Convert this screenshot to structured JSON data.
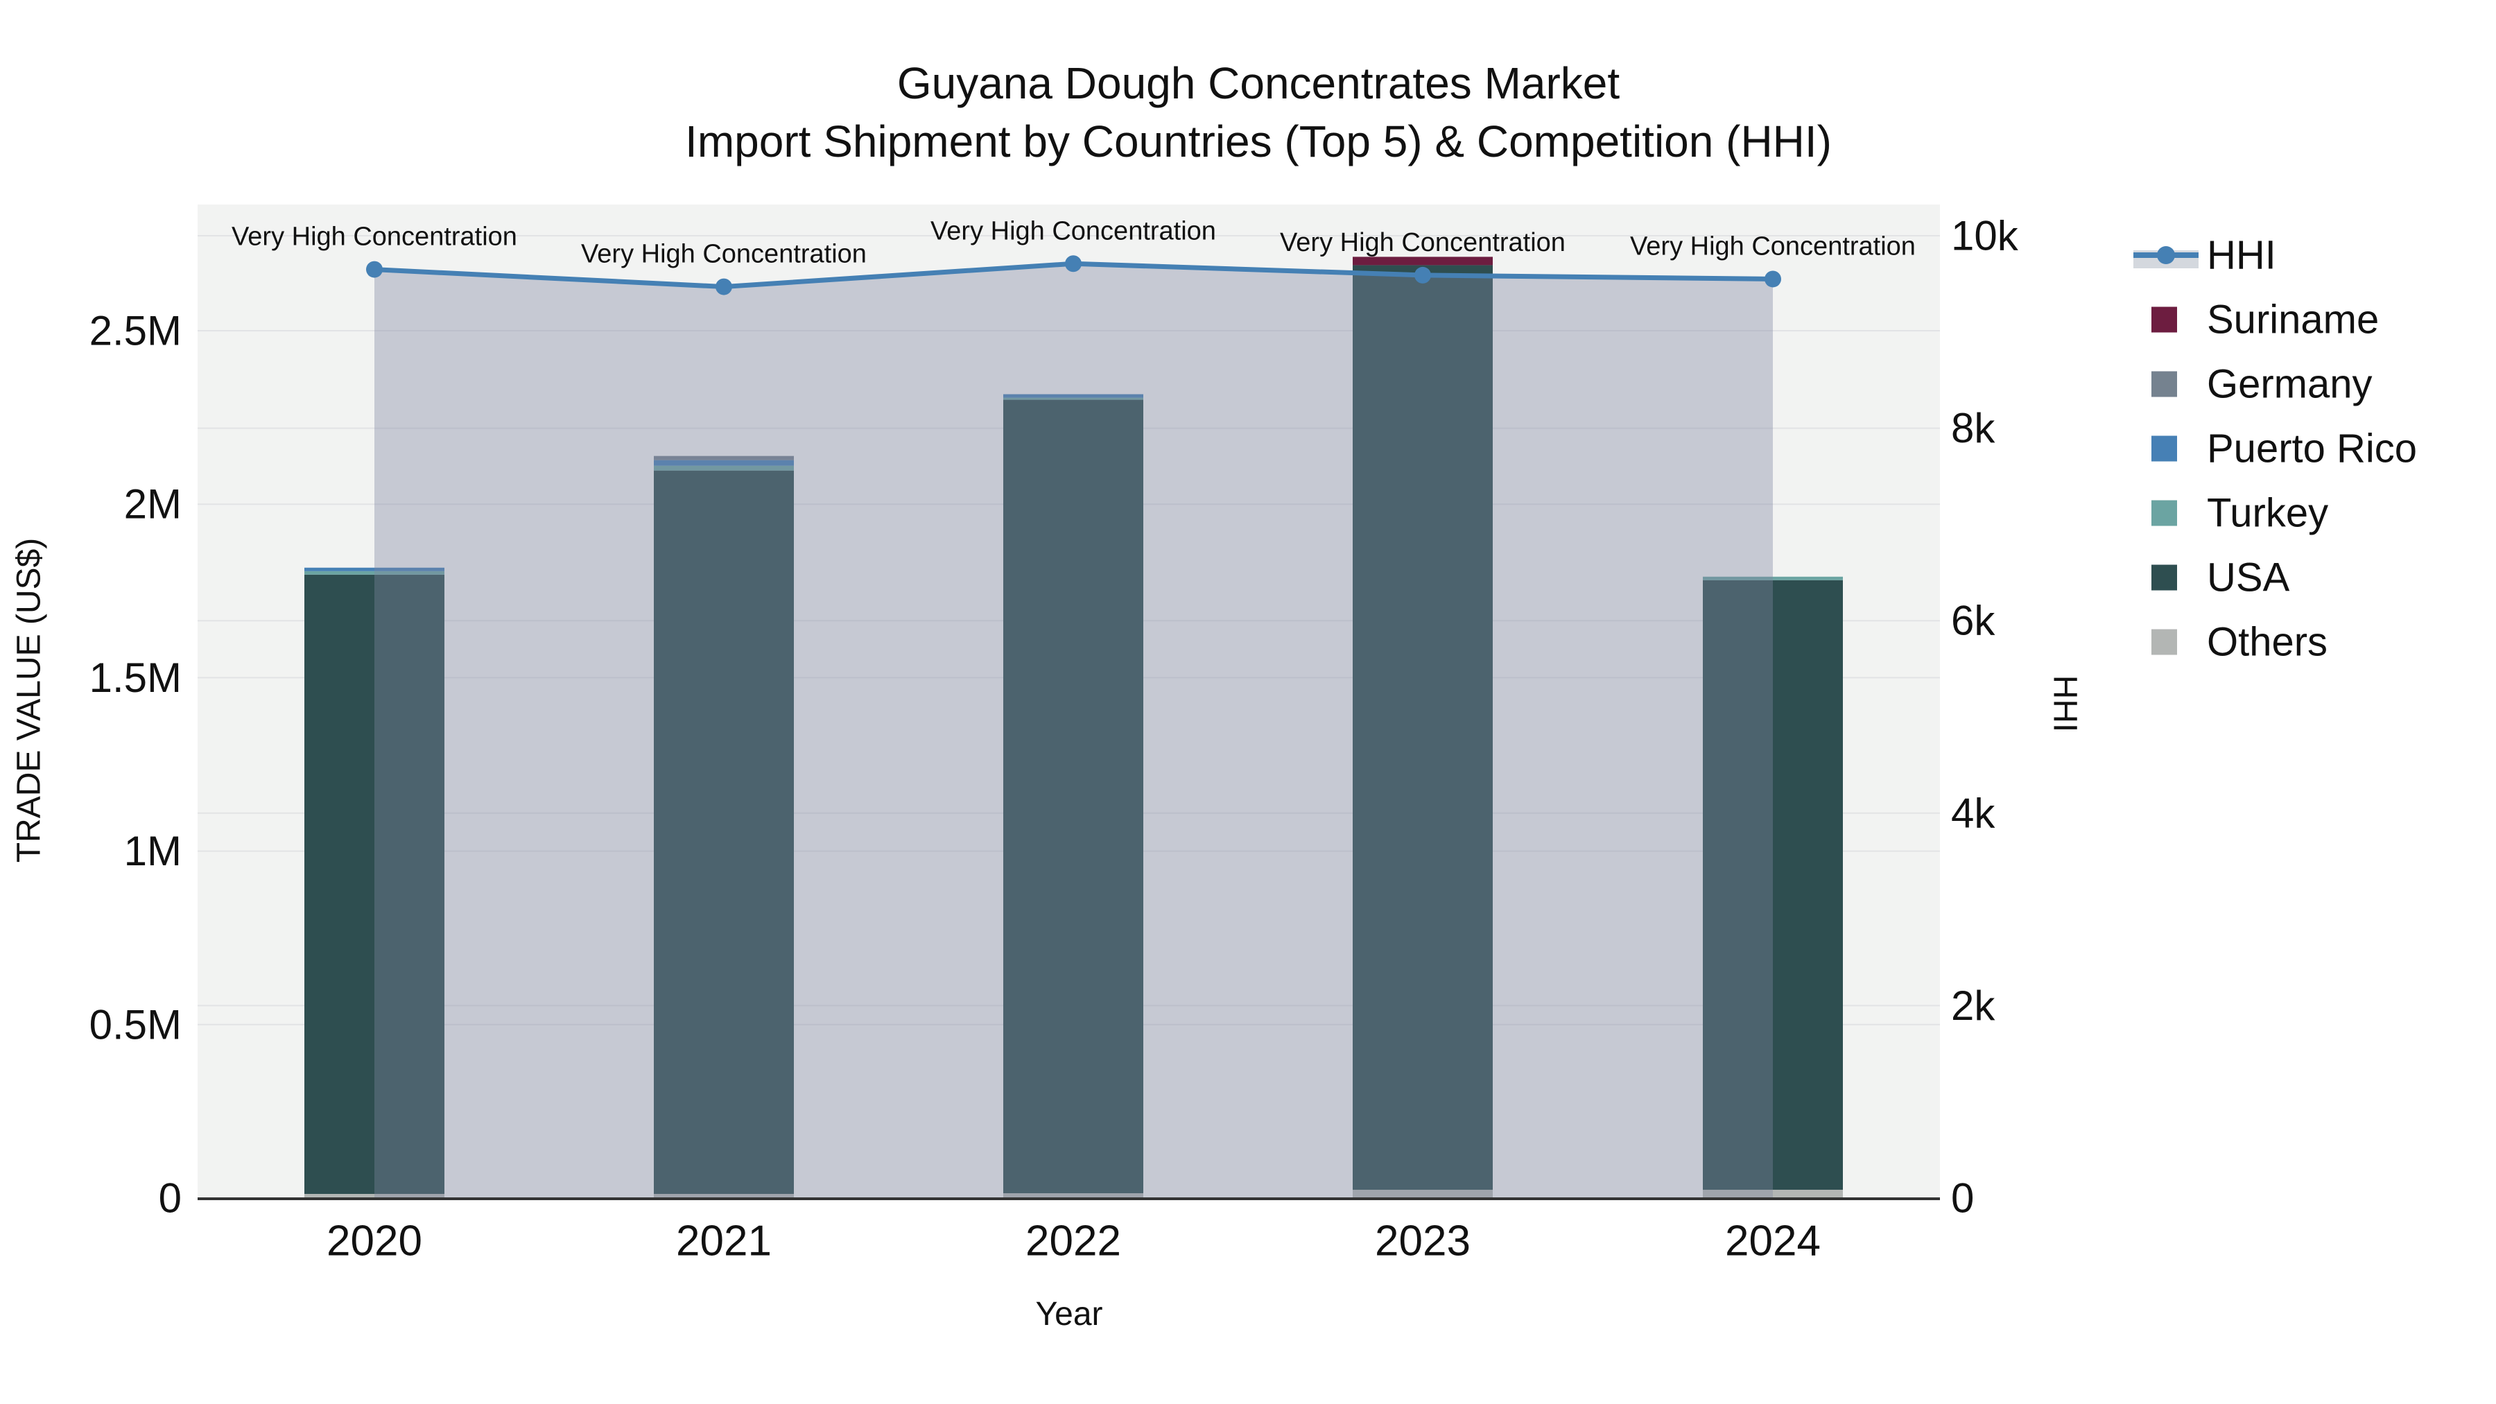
{
  "title": {
    "line1": "Guyana Dough Concentrates Market",
    "line2": "Import Shipment by Countries (Top 5) & Competition (HHI)"
  },
  "axes": {
    "x": {
      "title": "Year",
      "categories": [
        "2020",
        "2021",
        "2022",
        "2023",
        "2024"
      ]
    },
    "y_left": {
      "title": "TRADE VALUE (US$)",
      "ticks": [
        {
          "label": "0",
          "value": 0
        },
        {
          "label": "0.5M",
          "value": 500000
        },
        {
          "label": "1M",
          "value": 1000000
        },
        {
          "label": "1.5M",
          "value": 1500000
        },
        {
          "label": "2M",
          "value": 2000000
        },
        {
          "label": "2.5M",
          "value": 2500000
        }
      ]
    },
    "y_right": {
      "title": "HHI",
      "ticks": [
        {
          "label": "0",
          "value": 0
        },
        {
          "label": "2k",
          "value": 2000
        },
        {
          "label": "4k",
          "value": 4000
        },
        {
          "label": "6k",
          "value": 6000
        },
        {
          "label": "8k",
          "value": 8000
        },
        {
          "label": "10k",
          "value": 10000
        }
      ]
    }
  },
  "legend": {
    "items": [
      {
        "label": "HHI",
        "type": "line",
        "color": "#4580b4"
      },
      {
        "label": "Suriname",
        "type": "square",
        "color": "#6d1d40"
      },
      {
        "label": "Germany",
        "type": "square",
        "color": "#75828f"
      },
      {
        "label": "Puerto Rico",
        "type": "square",
        "color": "#4680b5"
      },
      {
        "label": "Turkey",
        "type": "square",
        "color": "#6ba4a2"
      },
      {
        "label": "USA",
        "type": "square",
        "color": "#2e4e50"
      },
      {
        "label": "Others",
        "type": "square",
        "color": "#b3b6b4"
      }
    ]
  },
  "chart_data": {
    "type": "combo",
    "subtype": "stacked-bar + line (secondary axis)",
    "categories": [
      "2020",
      "2021",
      "2022",
      "2023",
      "2024"
    ],
    "bar_series_bottom_to_top": [
      {
        "name": "Others",
        "color": "#b3b6b4",
        "values": [
          12000,
          12000,
          14000,
          24000,
          24000
        ]
      },
      {
        "name": "USA",
        "color": "#2e4e50",
        "values": [
          1785000,
          2085000,
          2287000,
          2665000,
          1757000
        ]
      },
      {
        "name": "Turkey",
        "color": "#6ba4a2",
        "values": [
          10000,
          14000,
          6000,
          0,
          10000
        ]
      },
      {
        "name": "Puerto Rico",
        "color": "#4680b5",
        "values": [
          10000,
          16000,
          10000,
          0,
          0
        ]
      },
      {
        "name": "Germany",
        "color": "#75828f",
        "values": [
          0,
          12000,
          0,
          0,
          0
        ]
      },
      {
        "name": "Suriname",
        "color": "#6d1d40",
        "values": [
          0,
          0,
          0,
          24000,
          0
        ]
      }
    ],
    "bar_totals": [
      1817000,
      2139000,
      2317000,
      2713000,
      1791000
    ],
    "line_series": {
      "name": "HHI",
      "axis": "right",
      "color": "#4580b4",
      "area_fill": "rgba(125,135,160,0.38)",
      "values": [
        9650,
        9470,
        9710,
        9590,
        9550
      ]
    },
    "annotations": [
      {
        "category": "2020",
        "text": "Very High Concentration"
      },
      {
        "category": "2021",
        "text": "Very High Concentration"
      },
      {
        "category": "2022",
        "text": "Very High Concentration"
      },
      {
        "category": "2023",
        "text": "Very High Concentration"
      },
      {
        "category": "2024",
        "text": "Very High Concentration"
      }
    ],
    "xlabel": "Year",
    "ylabel_left": "TRADE VALUE (US$)",
    "ylabel_right": "HHI",
    "ylim_left": [
      0,
      2500000
    ],
    "ylim_right": [
      0,
      10000
    ],
    "grid": true,
    "legend_position": "right",
    "plot_background": "#f2f3f2",
    "gridline_color": "#e2e3e5"
  }
}
